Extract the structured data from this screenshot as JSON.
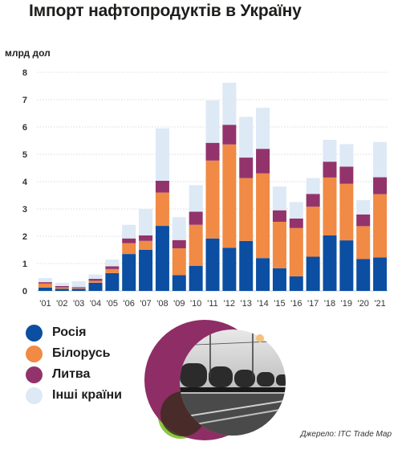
{
  "title": "Імпорт нафтопродуктів в Україну",
  "source": "Джерело: ITC Trade Map",
  "colors": {
    "russia": "#0b4ea2",
    "belarus": "#f08a44",
    "lithuania": "#93336b",
    "other": "#dde9f5",
    "grid": "#cfcfcf"
  },
  "legend": [
    {
      "label": "Росія",
      "color": "#0b4ea2"
    },
    {
      "label": "Білорусь",
      "color": "#f08a44"
    },
    {
      "label": "Литва",
      "color": "#93336b"
    },
    {
      "label": "Інші країни",
      "color": "#dde9f5"
    }
  ],
  "chart_data": {
    "type": "bar",
    "stacked": true,
    "title": "Імпорт нафтопродуктів в Україну",
    "ylabel": "млрд дол",
    "ylim": [
      0,
      8
    ],
    "yticks": [
      0,
      1,
      2,
      3,
      4,
      5,
      6,
      7,
      8
    ],
    "grid": true,
    "legend_position": "bottom-left",
    "categories": [
      "'01",
      "'02",
      "'03",
      "'04",
      "'05",
      "'06",
      "'07",
      "'08",
      "'09",
      "'10",
      "'11",
      "'12",
      "'13",
      "'14",
      "'15",
      "'16",
      "'17",
      "'18",
      "'19",
      "'20",
      "'21"
    ],
    "series": [
      {
        "name": "Росія",
        "color": "#0b4ea2",
        "values": [
          0.12,
          0.08,
          0.08,
          0.3,
          0.65,
          1.35,
          1.5,
          2.38,
          0.58,
          0.92,
          1.92,
          1.58,
          1.83,
          1.2,
          0.83,
          0.53,
          1.25,
          2.03,
          1.85,
          1.17,
          1.22
        ]
      },
      {
        "name": "Білорусь",
        "color": "#f08a44",
        "values": [
          0.15,
          0.05,
          0.03,
          0.07,
          0.15,
          0.4,
          0.33,
          1.22,
          0.98,
          1.5,
          2.85,
          3.78,
          2.3,
          3.1,
          1.7,
          1.77,
          1.83,
          2.12,
          2.07,
          1.2,
          2.32
        ]
      },
      {
        "name": "Литва",
        "color": "#93336b",
        "values": [
          0.05,
          0.05,
          0.03,
          0.07,
          0.1,
          0.17,
          0.2,
          0.43,
          0.3,
          0.48,
          0.65,
          0.72,
          0.75,
          0.9,
          0.42,
          0.35,
          0.47,
          0.58,
          0.63,
          0.43,
          0.62
        ]
      },
      {
        "name": "Інші країни",
        "color": "#dde9f5",
        "values": [
          0.15,
          0.12,
          0.21,
          0.16,
          0.25,
          0.5,
          0.97,
          1.92,
          0.84,
          0.97,
          1.55,
          1.54,
          1.49,
          1.5,
          0.87,
          0.6,
          0.58,
          0.8,
          0.82,
          0.52,
          1.29
        ]
      }
    ]
  }
}
